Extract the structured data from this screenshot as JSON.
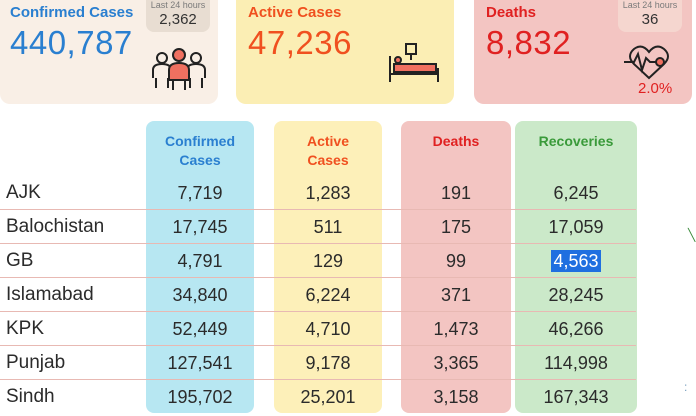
{
  "cards": {
    "confirmed": {
      "title": "Confirmed Cases",
      "value": "440,787",
      "badge_label": "Last 24 hours",
      "badge_value": "2,362",
      "icon": "people-icon"
    },
    "active": {
      "title": "Active Cases",
      "value": "47,236",
      "icon": "hospital-bed-icon"
    },
    "deaths": {
      "title": "Deaths",
      "value": "8,832",
      "badge_label": "Last 24 hours",
      "badge_value": "36",
      "percent": "2.0%",
      "icon": "heart-pulse-icon"
    }
  },
  "table": {
    "headers": {
      "confirmed": [
        "Confirmed",
        "Cases"
      ],
      "active": [
        "Active",
        "Cases"
      ],
      "deaths": "Deaths",
      "recoveries": "Recoveries"
    },
    "rows": [
      {
        "region": "AJK",
        "confirmed": "7,719",
        "active": "1,283",
        "deaths": "191",
        "recoveries": "6,245"
      },
      {
        "region": "Balochistan",
        "confirmed": "17,745",
        "active": "511",
        "deaths": "175",
        "recoveries": "17,059"
      },
      {
        "region": "GB",
        "confirmed": "4,791",
        "active": "129",
        "deaths": "99",
        "recoveries": "4,563"
      },
      {
        "region": "Islamabad",
        "confirmed": "34,840",
        "active": "6,224",
        "deaths": "371",
        "recoveries": "28,245"
      },
      {
        "region": "KPK",
        "confirmed": "52,449",
        "active": "4,710",
        "deaths": "1,473",
        "recoveries": "46,266"
      },
      {
        "region": "Punjab",
        "confirmed": "127,541",
        "active": "9,178",
        "deaths": "3,365",
        "recoveries": "114,998"
      },
      {
        "region": "Sindh",
        "confirmed": "195,702",
        "active": "25,201",
        "deaths": "3,158",
        "recoveries": "167,343"
      }
    ]
  },
  "colors": {
    "confirmed": "#2a7fd0",
    "active": "#f0501f",
    "deaths": "#e02121",
    "recoveries": "#3a9a3a",
    "selection": "#1f6fe0"
  }
}
